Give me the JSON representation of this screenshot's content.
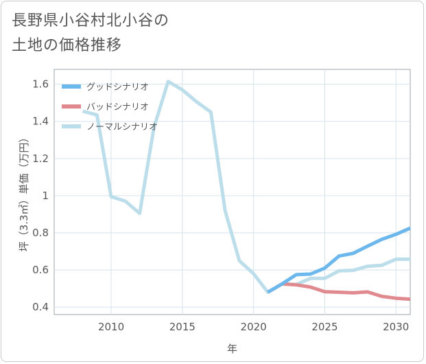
{
  "title_lines": [
    "長野県小谷村北小谷の",
    "土地の価格推移"
  ],
  "chart_data": {
    "type": "line",
    "x_label": "年",
    "y_label": "坪（3.3㎡）単価（万円）",
    "xlim": [
      2006,
      2031
    ],
    "ylim": [
      0.36,
      1.68
    ],
    "x_ticks": [
      2010,
      2015,
      2020,
      2025,
      2030
    ],
    "y_ticks": [
      0.4,
      0.6,
      0.8,
      1,
      1.2,
      1.4,
      1.6
    ],
    "y_tick_labels": [
      "0.4",
      "0.6",
      "0.8",
      "1",
      "1.2",
      "1.4",
      "1.6"
    ],
    "grid": true,
    "legend_position": "top-left",
    "series": [
      {
        "name": "グッドシナリオ",
        "color": "#6cb8ec",
        "x": [
          2021,
          2022,
          2023,
          2024,
          2025,
          2026,
          2027,
          2028,
          2029,
          2030,
          2031
        ],
        "y": [
          0.48,
          0.525,
          0.575,
          0.578,
          0.61,
          0.675,
          0.69,
          0.728,
          0.765,
          0.792,
          0.825
        ]
      },
      {
        "name": "バッドシナリオ",
        "color": "#e08a8f",
        "x": [
          2021,
          2022,
          2023,
          2024,
          2025,
          2026,
          2027,
          2028,
          2029,
          2030,
          2031
        ],
        "y": [
          0.48,
          0.525,
          0.52,
          0.508,
          0.483,
          0.48,
          0.477,
          0.482,
          0.458,
          0.448,
          0.443
        ]
      },
      {
        "name": "ノーマルシナリオ",
        "color": "#bcdeea",
        "x": [
          2008,
          2009,
          2010,
          2011,
          2012,
          2013,
          2014,
          2015,
          2016,
          2017,
          2018,
          2019,
          2020,
          2021,
          2022,
          2023,
          2024,
          2025,
          2026,
          2027,
          2028,
          2029,
          2030,
          2031
        ],
        "y": [
          1.455,
          1.435,
          0.995,
          0.97,
          0.905,
          1.365,
          1.615,
          1.57,
          1.505,
          1.45,
          0.92,
          0.65,
          0.58,
          0.48,
          0.525,
          0.522,
          0.555,
          0.555,
          0.595,
          0.598,
          0.62,
          0.625,
          0.658,
          0.658
        ]
      }
    ]
  }
}
